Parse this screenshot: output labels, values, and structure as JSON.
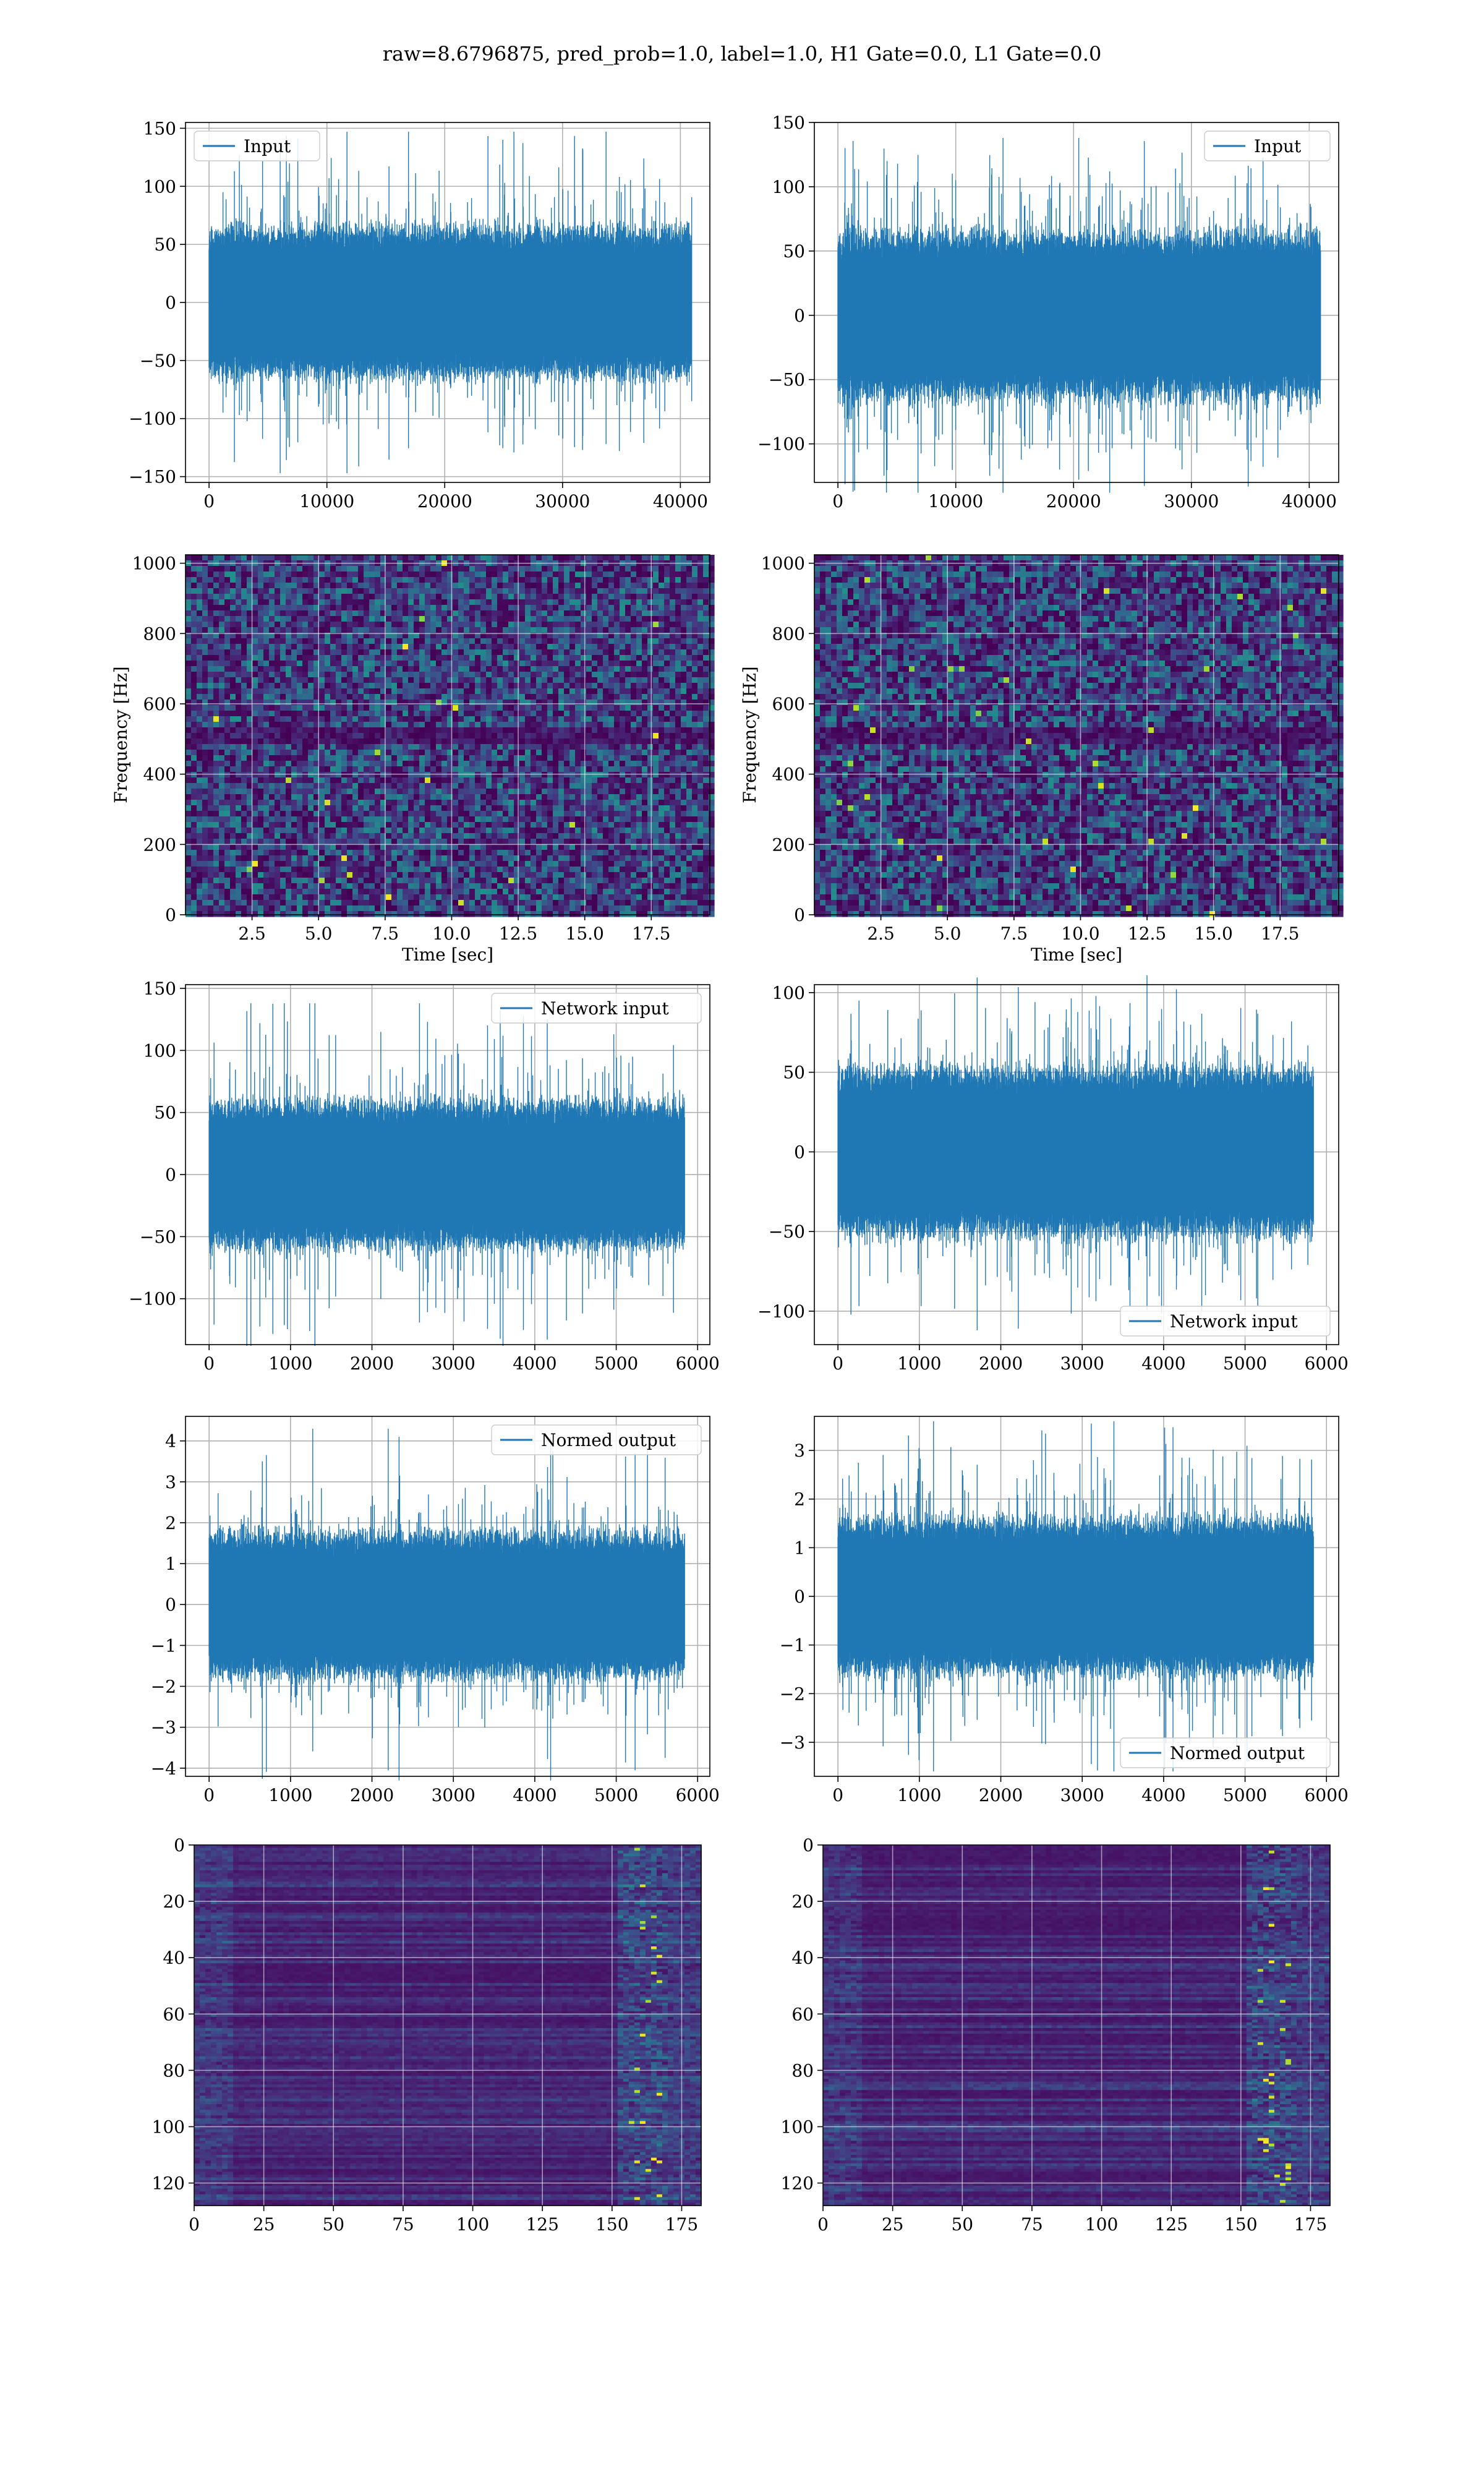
{
  "suptitle": "raw=8.6796875, pred_prob=1.0, label=1.0, H1 Gate=0.0, L1 Gate=0.0",
  "colors": {
    "line": "#1f77b4",
    "grid": "#b0b0b0",
    "viridis_low": "#440154",
    "viridis_mid": "#21918c",
    "viridis_high": "#fde725"
  },
  "chart_data": [
    {
      "id": "input-h1",
      "type": "line",
      "title": "",
      "legend": {
        "label": "Input",
        "loc": "upper left"
      },
      "xlim": [
        -2000,
        42500
      ],
      "ylim": [
        -155,
        155
      ],
      "xticks": [
        0,
        10000,
        20000,
        30000,
        40000
      ],
      "yticks": [
        -150,
        -100,
        -50,
        0,
        50,
        100,
        150
      ],
      "series": [
        {
          "n": 40960,
          "x_range": [
            0,
            40960
          ],
          "core_amplitude": 55,
          "peak_amplitude": 147,
          "seed": 11
        }
      ],
      "xlabel": "",
      "ylabel": "",
      "grid": true
    },
    {
      "id": "input-l1",
      "type": "line",
      "title": "",
      "legend": {
        "label": "Input",
        "loc": "upper right"
      },
      "xlim": [
        -2000,
        42500
      ],
      "ylim": [
        -130,
        150
      ],
      "xticks": [
        0,
        10000,
        20000,
        30000,
        40000
      ],
      "yticks": [
        -100,
        -50,
        0,
        50,
        100,
        150
      ],
      "series": [
        {
          "n": 40960,
          "x_range": [
            0,
            40960
          ],
          "core_amplitude": 55,
          "peak_amplitude": 138,
          "seed": 23
        }
      ],
      "xlabel": "",
      "ylabel": "",
      "grid": true
    },
    {
      "id": "spectrogram-h1",
      "type": "heatmap",
      "title": "",
      "xlabel": "Time [sec]",
      "ylabel": "Frequency [Hz]",
      "xlim": [
        0,
        19.7
      ],
      "ylim": [
        0,
        1024
      ],
      "xticks": [
        2.5,
        5.0,
        7.5,
        10.0,
        12.5,
        15.0,
        17.5
      ],
      "yticks": [
        0,
        200,
        400,
        600,
        800,
        1000
      ],
      "colormap": "viridis",
      "seed": 31,
      "grid": true
    },
    {
      "id": "spectrogram-l1",
      "type": "heatmap",
      "title": "",
      "xlabel": "Time [sec]",
      "ylabel": "Frequency [Hz]",
      "xlim": [
        0,
        19.7
      ],
      "ylim": [
        0,
        1024
      ],
      "xticks": [
        2.5,
        5.0,
        7.5,
        10.0,
        12.5,
        15.0,
        17.5
      ],
      "yticks": [
        0,
        200,
        400,
        600,
        800,
        1000
      ],
      "colormap": "viridis",
      "seed": 37,
      "grid": true
    },
    {
      "id": "network-input-h1",
      "type": "line",
      "title": "",
      "legend": {
        "label": "Network input",
        "loc": "upper right"
      },
      "xlim": [
        -290,
        6150
      ],
      "ylim": [
        -137,
        153
      ],
      "xticks": [
        0,
        1000,
        2000,
        3000,
        4000,
        5000,
        6000
      ],
      "yticks": [
        -100,
        -50,
        0,
        50,
        100,
        150
      ],
      "series": [
        {
          "n": 5840,
          "x_range": [
            0,
            5840
          ],
          "core_amplitude": 50,
          "peak_amplitude": 138,
          "seed": 41
        }
      ],
      "xlabel": "",
      "ylabel": "",
      "grid": true
    },
    {
      "id": "network-input-l1",
      "type": "line",
      "title": "",
      "legend": {
        "label": "Network input",
        "loc": "lower right"
      },
      "xlim": [
        -290,
        6150
      ],
      "ylim": [
        -121,
        105
      ],
      "xticks": [
        0,
        1000,
        2000,
        3000,
        4000,
        5000,
        6000
      ],
      "yticks": [
        -100,
        -50,
        0,
        50,
        100
      ],
      "series": [
        {
          "n": 5840,
          "x_range": [
            0,
            5840
          ],
          "core_amplitude": 45,
          "peak_amplitude": 112,
          "seed": 53
        }
      ],
      "xlabel": "",
      "ylabel": "",
      "grid": true
    },
    {
      "id": "normed-output-h1",
      "type": "line",
      "title": "",
      "legend": {
        "label": "Normed output",
        "loc": "upper right"
      },
      "xlim": [
        -290,
        6150
      ],
      "ylim": [
        -4.2,
        4.6
      ],
      "xticks": [
        0,
        1000,
        2000,
        3000,
        4000,
        5000,
        6000
      ],
      "yticks": [
        -4,
        -3,
        -2,
        -1,
        0,
        1,
        2,
        3,
        4
      ],
      "series": [
        {
          "n": 5840,
          "x_range": [
            0,
            5840
          ],
          "core_amplitude": 1.5,
          "peak_amplitude": 4.3,
          "seed": 61
        }
      ],
      "xlabel": "",
      "ylabel": "",
      "grid": true
    },
    {
      "id": "normed-output-l1",
      "type": "line",
      "title": "",
      "legend": {
        "label": "Normed output",
        "loc": "lower right"
      },
      "xlim": [
        -290,
        6150
      ],
      "ylim": [
        -3.7,
        3.7
      ],
      "xticks": [
        0,
        1000,
        2000,
        3000,
        4000,
        5000,
        6000
      ],
      "yticks": [
        -3,
        -2,
        -1,
        0,
        1,
        2,
        3
      ],
      "series": [
        {
          "n": 5840,
          "x_range": [
            0,
            5840
          ],
          "core_amplitude": 1.35,
          "peak_amplitude": 3.6,
          "seed": 71
        }
      ],
      "xlabel": "",
      "ylabel": "",
      "grid": true
    },
    {
      "id": "feature-map-h1",
      "type": "heatmap",
      "title": "",
      "xlim": [
        0,
        182
      ],
      "ylim": [
        128,
        0
      ],
      "xticks": [
        0,
        25,
        50,
        75,
        100,
        125,
        150,
        175
      ],
      "yticks": [
        0,
        20,
        40,
        60,
        80,
        100,
        120
      ],
      "colormap": "viridis",
      "rows": 128,
      "cols": 182,
      "seed": 83,
      "xlabel": "",
      "ylabel": "",
      "grid": true
    },
    {
      "id": "feature-map-l1",
      "type": "heatmap",
      "title": "",
      "xlim": [
        0,
        182
      ],
      "ylim": [
        128,
        0
      ],
      "xticks": [
        0,
        25,
        50,
        75,
        100,
        125,
        150,
        175
      ],
      "yticks": [
        0,
        20,
        40,
        60,
        80,
        100,
        120
      ],
      "colormap": "viridis",
      "rows": 128,
      "cols": 182,
      "seed": 97,
      "xlabel": "",
      "ylabel": "",
      "grid": true
    }
  ]
}
